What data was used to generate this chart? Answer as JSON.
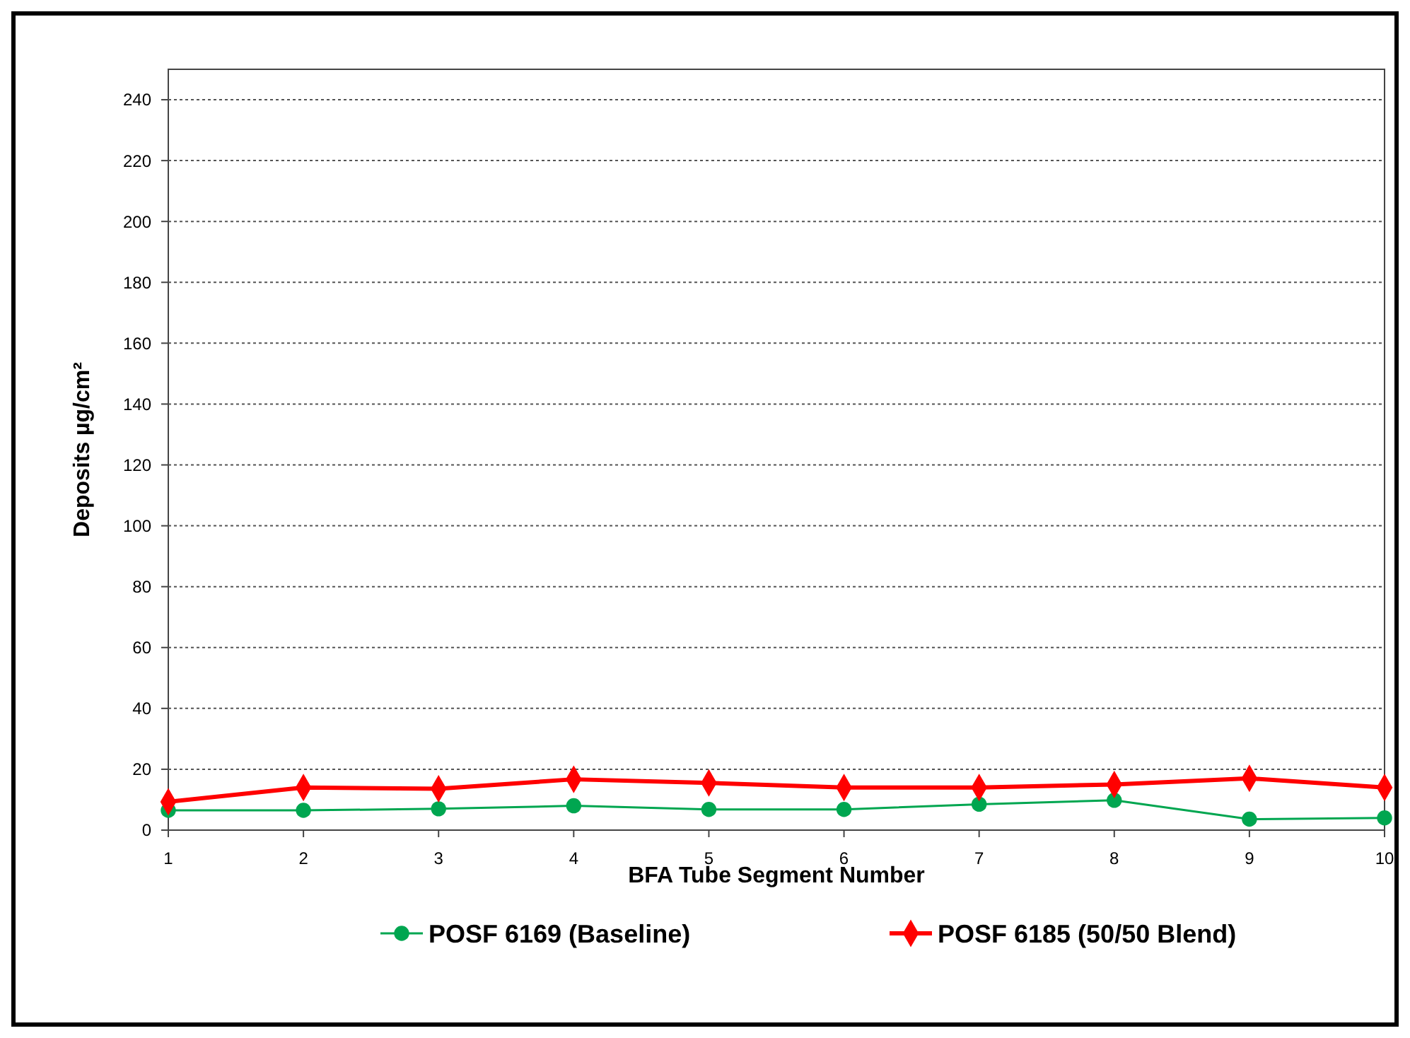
{
  "chart_data": {
    "type": "line",
    "xlabel": "BFA Tube Segment Number",
    "ylabel": "Deposits µg/cm²",
    "x": [
      1,
      2,
      3,
      4,
      5,
      6,
      7,
      8,
      9,
      10
    ],
    "xlim": [
      1,
      10
    ],
    "xticks": [
      1,
      2,
      3,
      4,
      5,
      6,
      7,
      8,
      9,
      10
    ],
    "ylim": [
      0,
      250
    ],
    "yticks": [
      0,
      20,
      40,
      60,
      80,
      100,
      120,
      140,
      160,
      180,
      200,
      220,
      240
    ],
    "grid": "y",
    "legend": "bottom",
    "series": [
      {
        "name": "POSF 6169 (Baseline)",
        "color": "#00a650",
        "marker": "circle",
        "values": [
          6.5,
          6.5,
          7,
          8,
          6.8,
          6.8,
          8.5,
          9.8,
          3.6,
          4
        ]
      },
      {
        "name": "POSF 6185 (50/50 Blend)",
        "color": "#ff0000",
        "marker": "diamond",
        "values": [
          9.3,
          14,
          13.6,
          16.7,
          15.5,
          14,
          14,
          15,
          17,
          14
        ]
      }
    ]
  }
}
